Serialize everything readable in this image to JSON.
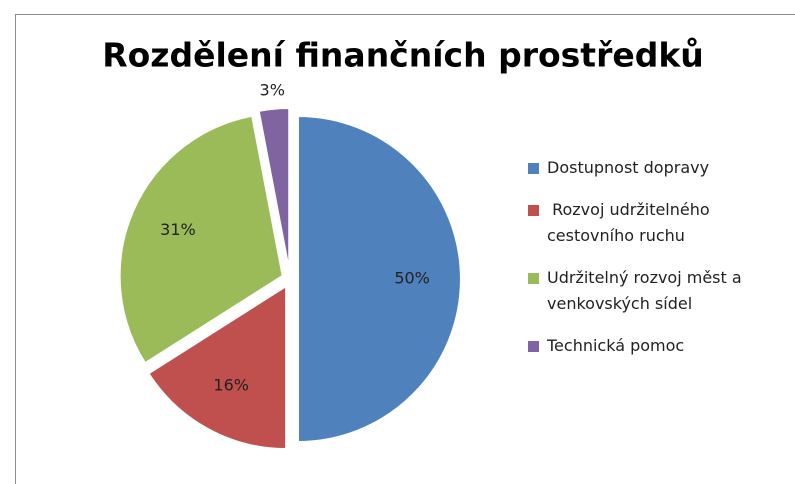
{
  "chart_data": {
    "type": "pie",
    "title": "Rozdělení finančních prostředků",
    "categories": [
      "Dostupnost dopravy",
      " Rozvoj udržitelného cestovního ruchu",
      "Udržitelný rozvoj měst a venkovských sídel",
      "Technická pomoc"
    ],
    "values": [
      50,
      16,
      31,
      3
    ],
    "value_labels": [
      "50%",
      "16%",
      "31%",
      "3%"
    ],
    "colors": [
      "#4f81bd",
      "#c0504d",
      "#9bbb59",
      "#8064a2"
    ],
    "legend": "right"
  }
}
